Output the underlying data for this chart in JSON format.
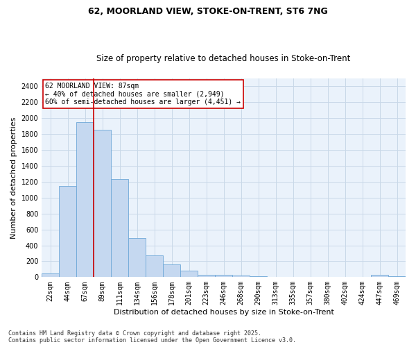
{
  "title_line1": "62, MOORLAND VIEW, STOKE-ON-TRENT, ST6 7NG",
  "title_line2": "Size of property relative to detached houses in Stoke-on-Trent",
  "xlabel": "Distribution of detached houses by size in Stoke-on-Trent",
  "ylabel": "Number of detached properties",
  "categories": [
    "22sqm",
    "44sqm",
    "67sqm",
    "89sqm",
    "111sqm",
    "134sqm",
    "156sqm",
    "178sqm",
    "201sqm",
    "223sqm",
    "246sqm",
    "268sqm",
    "290sqm",
    "313sqm",
    "335sqm",
    "357sqm",
    "380sqm",
    "402sqm",
    "424sqm",
    "447sqm",
    "469sqm"
  ],
  "values": [
    50,
    1150,
    1950,
    1850,
    1230,
    490,
    270,
    160,
    80,
    30,
    30,
    20,
    10,
    5,
    5,
    5,
    5,
    5,
    5,
    25,
    10
  ],
  "bar_color": "#c5d8f0",
  "bar_edge_color": "#6ea8d8",
  "vline_color": "#cc0000",
  "vline_index": 3,
  "annotation_text": "62 MOORLAND VIEW: 87sqm\n← 40% of detached houses are smaller (2,949)\n60% of semi-detached houses are larger (4,451) →",
  "annotation_box_color": "#ffffff",
  "annotation_box_edge": "#cc0000",
  "ylim": [
    0,
    2500
  ],
  "yticks": [
    0,
    200,
    400,
    600,
    800,
    1000,
    1200,
    1400,
    1600,
    1800,
    2000,
    2200,
    2400
  ],
  "grid_color": "#c8d8e8",
  "bg_color": "#eaf2fb",
  "footer": "Contains HM Land Registry data © Crown copyright and database right 2025.\nContains public sector information licensed under the Open Government Licence v3.0.",
  "title_fontsize": 9,
  "subtitle_fontsize": 8.5,
  "axis_label_fontsize": 8,
  "tick_fontsize": 7,
  "footer_fontsize": 6
}
